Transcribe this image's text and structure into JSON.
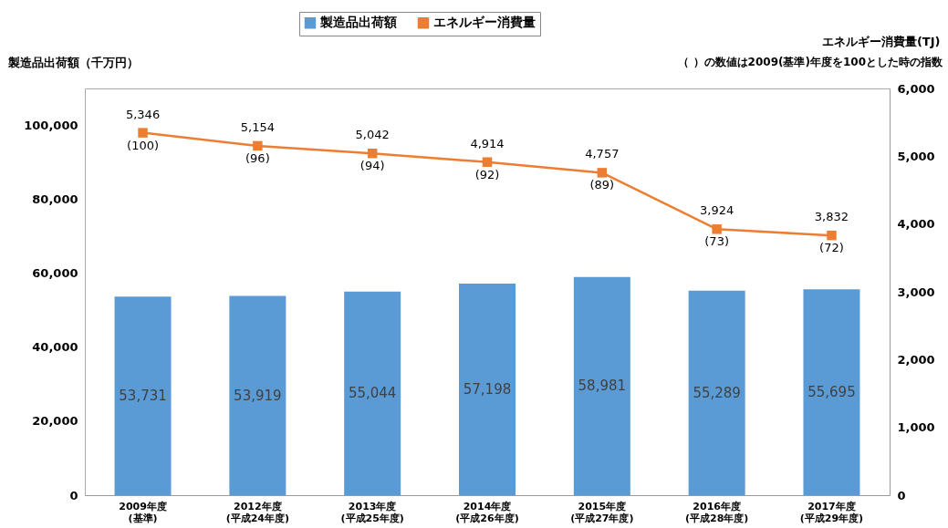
{
  "chart_data": {
    "type": "bar",
    "ylabel": "製造品出荷額（千万円）",
    "y2label": "エネルギー消費量(TJ)",
    "categories": [
      "2009年度\n(基準)",
      "2012年度\n(平成24年度)",
      "2013年度\n(平成25年度)",
      "2014年度\n(平成26年度)",
      "2015年度\n(平成27年度)",
      "2016年度\n(平成28年度)",
      "2017年度\n(平成29年度)"
    ],
    "series": [
      {
        "name": "製造品出荷額",
        "color": "#5b9bd5",
        "values": [
          53731,
          53919,
          55044,
          57198,
          58981,
          55289,
          55695
        ],
        "value_labels": [
          "53,731",
          "53,919",
          "55,044",
          "57,198",
          "58,981",
          "55,289",
          "55,695"
        ]
      },
      {
        "name": "エネルギー消費量",
        "type": "line",
        "axis": "y2",
        "color": "#ed7d31",
        "values": [
          5346,
          5154,
          5042,
          4914,
          4757,
          3924,
          3832
        ],
        "value_labels": [
          "5,346\n(100)",
          "5,154\n(96)",
          "5,042\n(94)",
          "4,914\n(92)",
          "4,757\n(89)",
          "3,924\n(73)",
          "3,832\n(72)"
        ]
      }
    ],
    "ylim": [
      0,
      110000
    ],
    "yticks": [
      0,
      {
        "value": 20000,
        "label": "20,000"
      },
      {
        "value": 40000,
        "label": "40,000"
      },
      {
        "value": 60000,
        "label": "60,000"
      },
      {
        "value": 80000,
        "label": "80,000"
      },
      {
        "value": 100000,
        "label": "100,000"
      }
    ],
    "y2lim": [
      0,
      6000
    ],
    "y2ticks": [
      0,
      {
        "value": 1000,
        "label": "1,000"
      },
      {
        "value": 2000,
        "label": "2,000"
      },
      {
        "value": 3000,
        "label": "3,000"
      },
      {
        "value": 4000,
        "label": "4,000"
      },
      {
        "value": 5000,
        "label": "5,000"
      },
      {
        "value": 6000,
        "label": "6,000"
      }
    ],
    "legend": "top",
    "grid": false,
    "marker": "square",
    "line_style": "solid",
    "annotations": [
      "（ ）の数値は2009(基準)年度を100とした時の指数"
    ]
  }
}
